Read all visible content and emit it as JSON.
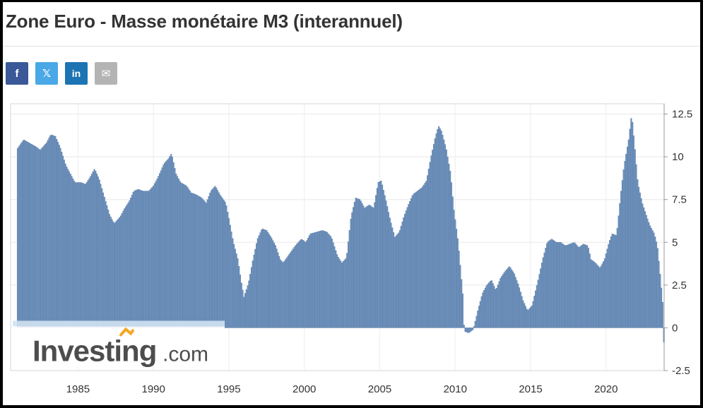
{
  "page": {
    "title": "Zone Euro - Masse monétaire M3 (interannuel)"
  },
  "share": {
    "facebook_label": "f",
    "twitter_label": "𝕏",
    "linkedin_label": "in",
    "email_label": "✉",
    "icons": [
      "facebook-icon",
      "twitter-x-icon",
      "linkedin-icon",
      "email-icon"
    ],
    "colors": {
      "facebook": "#3b5998",
      "twitter": "#4aa8e6",
      "linkedin": "#1c74b2",
      "email": "#b4b4b4"
    }
  },
  "watermark": {
    "brand": "Investing",
    "suffix": ".com",
    "brand_color": "#4d4d4d",
    "accent_color": "#f5a623"
  },
  "chart_data": {
    "type": "bar",
    "title": "",
    "xlabel": "",
    "ylabel": "",
    "x_range": [
      1981.0,
      2023.85
    ],
    "ylim": [
      -2.5,
      13.1
    ],
    "y_ticks": [
      -2.5,
      0,
      2.5,
      5,
      7.5,
      10,
      12.5
    ],
    "y_tick_labels": [
      "-2.5",
      "0",
      "2.5",
      "5",
      "7.5",
      "10",
      "12.5"
    ],
    "x_ticks": [
      1985,
      1990,
      1995,
      2000,
      2005,
      2010,
      2015,
      2020
    ],
    "x_tick_labels": [
      "1985",
      "1990",
      "1995",
      "2000",
      "2005",
      "2010",
      "2015",
      "2020"
    ],
    "y_axis_position": "right",
    "grid": true,
    "bar_color": "#6f93bd",
    "bar_edge_color": "#4f719e",
    "series_points": [
      [
        1981.0,
        10.5
      ],
      [
        1981.4,
        11.0
      ],
      [
        1981.8,
        10.8
      ],
      [
        1982.2,
        10.6
      ],
      [
        1982.5,
        10.4
      ],
      [
        1982.9,
        10.8
      ],
      [
        1983.2,
        11.3
      ],
      [
        1983.5,
        11.2
      ],
      [
        1983.8,
        10.6
      ],
      [
        1984.2,
        9.5
      ],
      [
        1984.5,
        9.0
      ],
      [
        1984.8,
        8.5
      ],
      [
        1985.2,
        8.5
      ],
      [
        1985.5,
        8.4
      ],
      [
        1985.8,
        8.8
      ],
      [
        1986.1,
        9.3
      ],
      [
        1986.4,
        8.7
      ],
      [
        1986.8,
        7.5
      ],
      [
        1987.1,
        6.6
      ],
      [
        1987.4,
        6.1
      ],
      [
        1987.8,
        6.5
      ],
      [
        1988.1,
        7.0
      ],
      [
        1988.4,
        7.4
      ],
      [
        1988.7,
        8.0
      ],
      [
        1989.0,
        8.1
      ],
      [
        1989.3,
        8.0
      ],
      [
        1989.7,
        8.0
      ],
      [
        1990.0,
        8.3
      ],
      [
        1990.3,
        8.8
      ],
      [
        1990.7,
        9.6
      ],
      [
        1991.0,
        9.9
      ],
      [
        1991.2,
        10.2
      ],
      [
        1991.5,
        9.0
      ],
      [
        1991.8,
        8.5
      ],
      [
        1992.2,
        8.3
      ],
      [
        1992.5,
        7.9
      ],
      [
        1992.8,
        7.8
      ],
      [
        1993.2,
        7.6
      ],
      [
        1993.5,
        7.3
      ],
      [
        1993.8,
        8.0
      ],
      [
        1994.1,
        8.3
      ],
      [
        1994.4,
        7.8
      ],
      [
        1994.8,
        7.3
      ],
      [
        1995.0,
        6.4
      ],
      [
        1995.3,
        5.0
      ],
      [
        1995.6,
        4.0
      ],
      [
        1995.8,
        2.8
      ],
      [
        1996.0,
        1.8
      ],
      [
        1996.3,
        2.6
      ],
      [
        1996.6,
        4.0
      ],
      [
        1996.9,
        5.2
      ],
      [
        1997.2,
        5.8
      ],
      [
        1997.5,
        5.7
      ],
      [
        1997.8,
        5.3
      ],
      [
        1998.1,
        4.8
      ],
      [
        1998.4,
        4.0
      ],
      [
        1998.6,
        3.8
      ],
      [
        1999.0,
        4.3
      ],
      [
        1999.4,
        4.8
      ],
      [
        1999.8,
        5.2
      ],
      [
        2000.1,
        5.0
      ],
      [
        2000.4,
        5.5
      ],
      [
        2000.8,
        5.6
      ],
      [
        2001.2,
        5.7
      ],
      [
        2001.5,
        5.6
      ],
      [
        2001.8,
        5.3
      ],
      [
        2002.2,
        4.2
      ],
      [
        2002.5,
        3.8
      ],
      [
        2002.8,
        4.1
      ],
      [
        2003.1,
        6.5
      ],
      [
        2003.4,
        7.6
      ],
      [
        2003.7,
        7.5
      ],
      [
        2004.0,
        7.0
      ],
      [
        2004.3,
        7.2
      ],
      [
        2004.6,
        7.0
      ],
      [
        2004.9,
        8.5
      ],
      [
        2005.1,
        8.6
      ],
      [
        2005.4,
        7.5
      ],
      [
        2005.7,
        6.3
      ],
      [
        2006.0,
        5.3
      ],
      [
        2006.3,
        5.6
      ],
      [
        2006.6,
        6.5
      ],
      [
        2006.9,
        7.2
      ],
      [
        2007.2,
        7.8
      ],
      [
        2007.5,
        8.0
      ],
      [
        2007.8,
        8.2
      ],
      [
        2008.1,
        8.6
      ],
      [
        2008.4,
        10.0
      ],
      [
        2008.7,
        11.2
      ],
      [
        2008.9,
        11.8
      ],
      [
        2009.1,
        11.5
      ],
      [
        2009.4,
        10.5
      ],
      [
        2009.7,
        9.0
      ],
      [
        2009.9,
        7.0
      ],
      [
        2010.2,
        5.0
      ],
      [
        2010.5,
        2.0
      ],
      [
        2010.6,
        -0.2
      ],
      [
        2010.9,
        -0.3
      ],
      [
        2011.2,
        -0.1
      ],
      [
        2011.5,
        1.0
      ],
      [
        2011.8,
        2.0
      ],
      [
        2012.1,
        2.5
      ],
      [
        2012.4,
        2.8
      ],
      [
        2012.7,
        2.2
      ],
      [
        2013.0,
        2.9
      ],
      [
        2013.3,
        3.3
      ],
      [
        2013.6,
        3.6
      ],
      [
        2013.9,
        3.2
      ],
      [
        2014.2,
        2.5
      ],
      [
        2014.5,
        1.6
      ],
      [
        2014.8,
        1.0
      ],
      [
        2015.1,
        1.3
      ],
      [
        2015.5,
        2.8
      ],
      [
        2015.8,
        4.0
      ],
      [
        2016.1,
        5.0
      ],
      [
        2016.4,
        5.2
      ],
      [
        2016.7,
        5.0
      ],
      [
        2017.0,
        5.0
      ],
      [
        2017.3,
        4.8
      ],
      [
        2017.6,
        4.9
      ],
      [
        2017.9,
        5.0
      ],
      [
        2018.2,
        4.7
      ],
      [
        2018.5,
        4.9
      ],
      [
        2018.8,
        4.8
      ],
      [
        2019.0,
        4.0
      ],
      [
        2019.3,
        3.8
      ],
      [
        2019.6,
        3.5
      ],
      [
        2019.9,
        4.0
      ],
      [
        2020.2,
        5.0
      ],
      [
        2020.4,
        5.5
      ],
      [
        2020.7,
        5.4
      ],
      [
        2021.0,
        8.0
      ],
      [
        2021.2,
        9.5
      ],
      [
        2021.5,
        11.0
      ],
      [
        2021.7,
        12.5
      ],
      [
        2021.9,
        10.6
      ],
      [
        2022.1,
        8.5
      ],
      [
        2022.4,
        7.3
      ],
      [
        2022.7,
        6.5
      ],
      [
        2022.9,
        6.0
      ],
      [
        2023.2,
        5.5
      ],
      [
        2023.4,
        4.8
      ],
      [
        2023.6,
        3.0
      ],
      [
        2023.75,
        1.5
      ],
      [
        2023.85,
        -1.3
      ]
    ]
  }
}
